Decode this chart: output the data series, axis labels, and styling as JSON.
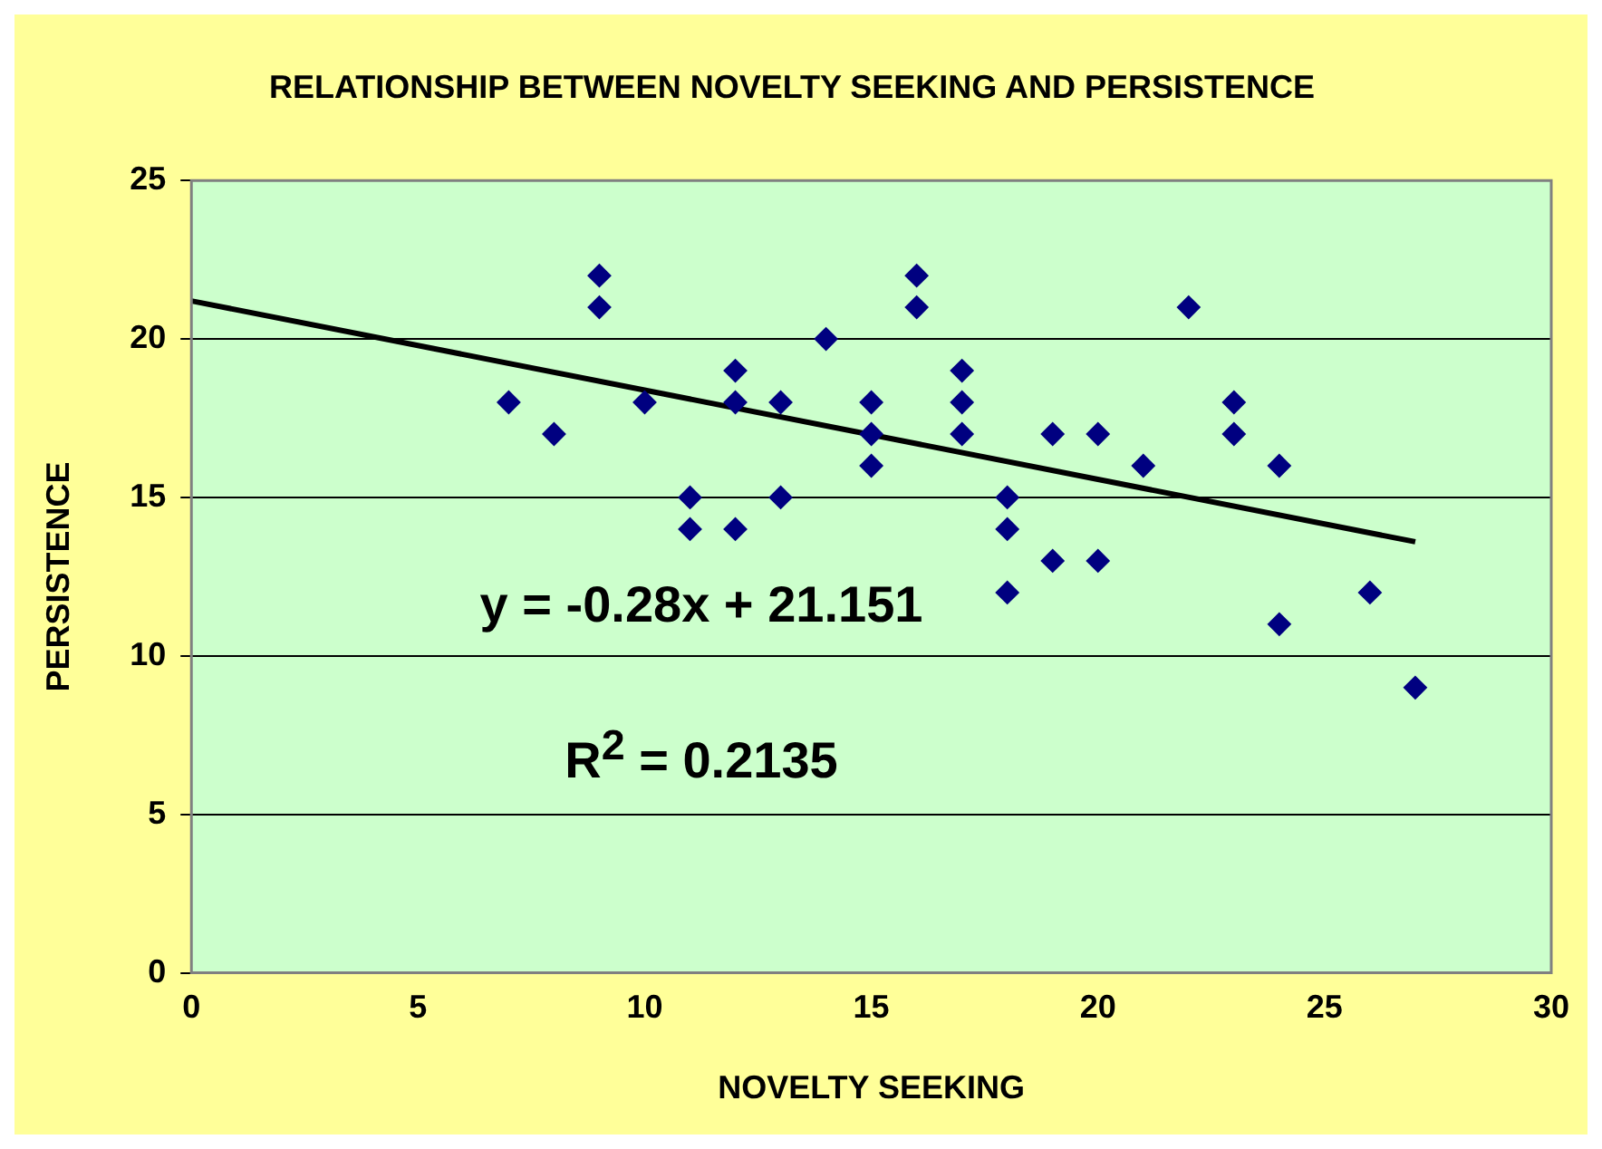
{
  "chart_data": {
    "type": "scatter",
    "title": "RELATIONSHIP BETWEEN NOVELTY SEEKING AND PERSISTENCE",
    "xlabel": "NOVELTY SEEKING",
    "ylabel": "PERSISTENCE",
    "series": [
      {
        "color": "#000080",
        "marker": "diamond",
        "x": [
          7,
          8,
          9,
          9,
          10,
          11,
          11,
          12,
          12,
          12,
          13,
          13,
          14,
          15,
          15,
          15,
          16,
          16,
          17,
          17,
          17,
          18,
          18,
          18,
          19,
          19,
          20,
          20,
          21,
          22,
          23,
          23,
          24,
          24,
          26,
          27
        ],
        "values": [
          18,
          17,
          22,
          21,
          18,
          15,
          14,
          19,
          18,
          14,
          18,
          15,
          20,
          18,
          17,
          16,
          22,
          21,
          19,
          18,
          17,
          15,
          14,
          12,
          17,
          13,
          17,
          13,
          16,
          21,
          18,
          17,
          16,
          11,
          12,
          9
        ]
      },
      {
        "type": "line",
        "color": "#000000",
        "marker": "none",
        "x": [
          0,
          27
        ],
        "values": [
          21.2,
          13.6
        ]
      }
    ],
    "annotations": [
      "y = -0.28x + 21.151",
      "R$^{2}$ = 0.2135"
    ],
    "xlim": [
      0,
      30
    ],
    "xticks": [
      0,
      5,
      10,
      15,
      20,
      25,
      30
    ],
    "ylim": [
      0,
      25
    ],
    "yticks": [
      0,
      5,
      10,
      15,
      20,
      25
    ],
    "grid": "y",
    "legend": false
  }
}
